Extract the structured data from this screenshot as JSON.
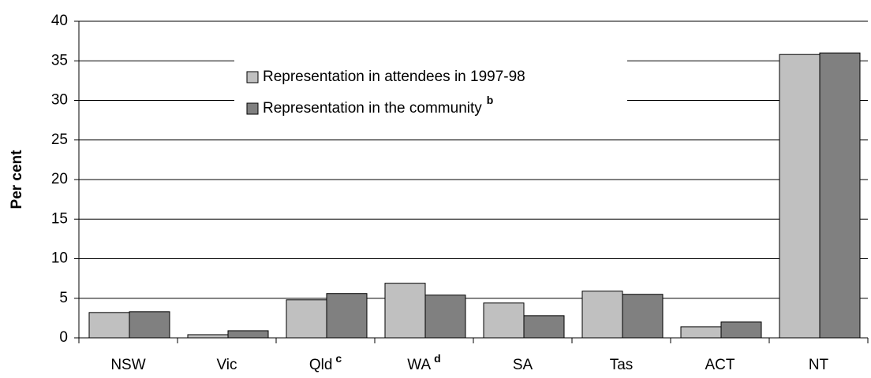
{
  "chart_data": {
    "type": "bar",
    "y_label": "Per cent",
    "categories": [
      "NSW",
      "Vic",
      "Qld",
      "WA",
      "SA",
      "Tas",
      "ACT",
      "NT"
    ],
    "category_notes": [
      null,
      null,
      "c",
      "d",
      null,
      null,
      null,
      null
    ],
    "series": [
      {
        "name": "Representation in attendees in 1997-98",
        "color": "#c0c0c0",
        "values": [
          3.2,
          0.4,
          4.8,
          6.9,
          4.4,
          5.9,
          1.4,
          35.8
        ]
      },
      {
        "name": "Representation in the community",
        "note": "b",
        "color": "#808080",
        "values": [
          3.3,
          0.9,
          5.6,
          5.4,
          2.8,
          5.5,
          2.0,
          36.0
        ]
      }
    ],
    "ylim": [
      0,
      40
    ],
    "yticks": [
      0,
      5,
      10,
      15,
      20,
      25,
      30,
      35,
      40
    ],
    "grid": true
  }
}
